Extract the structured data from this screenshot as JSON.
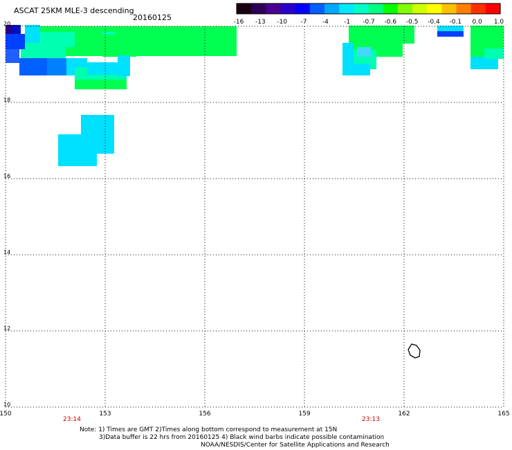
{
  "header": {
    "title": "ASCAT 25KM MLE-3 descending",
    "date": "20160125"
  },
  "colorbar": {
    "ticks": [
      "-16",
      "-13",
      "-10",
      "-7",
      "-4",
      "-1",
      "-0.7",
      "-0.6",
      "-0.5",
      "-0.4",
      "-0.1",
      "0.0",
      "1.0"
    ],
    "colors": [
      "#1a0012",
      "#2d0055",
      "#4a0090",
      "#2a00cc",
      "#0000ff",
      "#0060ff",
      "#00a8ff",
      "#00e8ff",
      "#00ffc8",
      "#00ff80",
      "#00ff00",
      "#80ff00",
      "#d0ff00",
      "#ffff00",
      "#ffc000",
      "#ff8000",
      "#ff3000",
      "#ff0000"
    ]
  },
  "map": {
    "lat_labels": [
      "20",
      "18",
      "16",
      "14",
      "12",
      "10"
    ],
    "lon_labels": [
      "150",
      "153",
      "156",
      "159",
      "162",
      "165"
    ],
    "time_labels": [
      {
        "text": "23:14",
        "lon": 152
      },
      {
        "text": "23:13",
        "lon": 161
      }
    ]
  },
  "footer": {
    "line1": "Note: 1) Times are GMT 2)Times along bottom correspond to measurement at 15N",
    "line2": "3)Data buffer is 22 hrs from 20160125 4) Black wind barbs indicate possible contamination",
    "line3": "NOAA/NESDIS/Center for Satellite Applications and Research"
  },
  "colors": {
    "grid": "#000000",
    "time_label": "#cc0000",
    "cyan": "#00e0ff",
    "green": "#00ff50",
    "sea_green": "#00ffb0",
    "blue": "#0040ff",
    "deep_blue": "#0010c0",
    "purple": "#300080"
  }
}
